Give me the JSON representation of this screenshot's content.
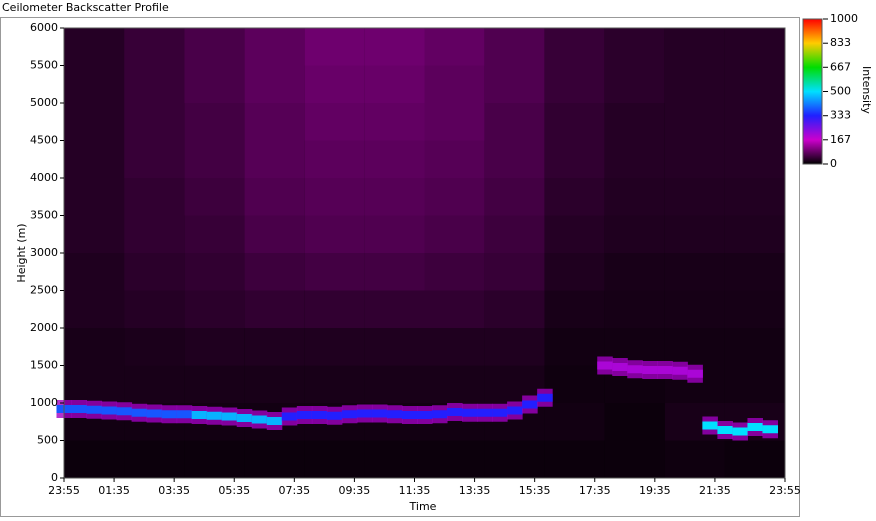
{
  "window_title": "Ceilometer Backscatter Profile",
  "chart_data": {
    "type": "heatmap",
    "xlabel": "Time",
    "ylabel": "Height (m)",
    "xlim": [
      0,
      24
    ],
    "xticks": [
      {
        "value": 0,
        "label": "23:55"
      },
      {
        "value": 1.667,
        "label": "01:35"
      },
      {
        "value": 3.667,
        "label": "03:35"
      },
      {
        "value": 5.667,
        "label": "05:35"
      },
      {
        "value": 7.667,
        "label": "07:35"
      },
      {
        "value": 9.667,
        "label": "09:35"
      },
      {
        "value": 11.667,
        "label": "11:35"
      },
      {
        "value": 13.667,
        "label": "13:35"
      },
      {
        "value": 15.667,
        "label": "15:35"
      },
      {
        "value": 17.667,
        "label": "17:35"
      },
      {
        "value": 19.667,
        "label": "19:35"
      },
      {
        "value": 21.667,
        "label": "21:35"
      },
      {
        "value": 24,
        "label": "23:55"
      }
    ],
    "ylim": [
      0,
      6000
    ],
    "yticks": [
      0,
      500,
      1000,
      1500,
      2000,
      2500,
      3000,
      3500,
      4000,
      4500,
      5000,
      5500,
      6000
    ],
    "z": [
      [
        10,
        10,
        10,
        10,
        10,
        10,
        10,
        10,
        10,
        10,
        12,
        10
      ],
      [
        15,
        15,
        15,
        15,
        15,
        15,
        15,
        15,
        15,
        10,
        20,
        20
      ],
      [
        20,
        20,
        20,
        20,
        20,
        20,
        20,
        20,
        12,
        12,
        15,
        15
      ],
      [
        20,
        22,
        25,
        25,
        25,
        25,
        25,
        25,
        15,
        15,
        15,
        15
      ],
      [
        25,
        30,
        35,
        40,
        40,
        40,
        40,
        35,
        20,
        18,
        18,
        18
      ],
      [
        25,
        35,
        40,
        50,
        55,
        55,
        50,
        45,
        25,
        20,
        20,
        20
      ],
      [
        30,
        40,
        45,
        60,
        65,
        65,
        60,
        50,
        30,
        25,
        25,
        25
      ],
      [
        30,
        40,
        50,
        65,
        70,
        70,
        65,
        55,
        35,
        28,
        28,
        28
      ],
      [
        30,
        45,
        55,
        70,
        75,
        75,
        70,
        60,
        40,
        30,
        30,
        30
      ],
      [
        30,
        45,
        55,
        70,
        80,
        80,
        75,
        60,
        40,
        30,
        30,
        30
      ],
      [
        30,
        45,
        60,
        75,
        85,
        85,
        75,
        65,
        45,
        35,
        30,
        30
      ],
      [
        30,
        45,
        60,
        75,
        90,
        90,
        80,
        65,
        45,
        35,
        30,
        30
      ]
    ],
    "z_bins_x": [
      0,
      2,
      4,
      6,
      8,
      10,
      12,
      14,
      16,
      18,
      20,
      22,
      24
    ],
    "z_bins_y": [
      0,
      500,
      1000,
      1500,
      2000,
      2500,
      3000,
      3500,
      4000,
      4500,
      5000,
      5500,
      6000
    ],
    "layer": {
      "x": [
        0,
        0.5,
        1,
        1.5,
        2,
        2.5,
        3,
        3.5,
        4,
        4.5,
        5,
        5.5,
        6,
        6.5,
        7,
        7.5,
        8,
        8.5,
        9,
        9.5,
        10,
        10.5,
        11,
        11.5,
        12,
        12.5,
        13,
        13.5,
        14,
        14.5,
        15,
        15.5,
        16,
        16.5,
        17,
        17.5,
        18,
        18.5,
        19,
        19.5,
        20,
        20.5,
        21,
        21.5,
        22,
        22.5,
        23,
        23.5,
        24
      ],
      "height": [
        920,
        920,
        910,
        900,
        890,
        870,
        860,
        850,
        850,
        840,
        830,
        820,
        800,
        780,
        760,
        820,
        840,
        840,
        830,
        850,
        860,
        860,
        850,
        840,
        840,
        850,
        880,
        870,
        870,
        870,
        900,
        980,
        1070,
        null,
        null,
        null,
        1500,
        1480,
        1450,
        1440,
        1440,
        1430,
        1390,
        700,
        640,
        620,
        680,
        650,
        null
      ],
      "intensity": [
        380,
        380,
        380,
        380,
        380,
        380,
        380,
        380,
        380,
        460,
        460,
        460,
        460,
        460,
        460,
        330,
        330,
        330,
        330,
        330,
        330,
        330,
        330,
        330,
        330,
        330,
        330,
        330,
        330,
        330,
        330,
        330,
        330,
        null,
        null,
        null,
        200,
        200,
        200,
        200,
        200,
        200,
        200,
        500,
        500,
        500,
        500,
        500,
        null
      ]
    },
    "colorbar": {
      "label": "Intensity",
      "clim": [
        0,
        1000
      ],
      "ticks": [
        0,
        167,
        333,
        500,
        667,
        833,
        1000
      ],
      "colormap": [
        "#000000",
        "#cc00cc",
        "#2020ff",
        "#00e0ff",
        "#00dd00",
        "#ffcc00",
        "#ff0000"
      ]
    }
  }
}
